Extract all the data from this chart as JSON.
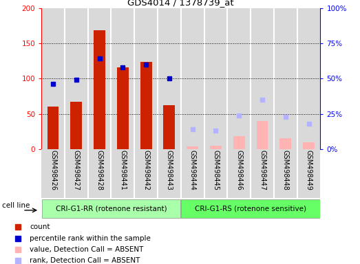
{
  "title": "GDS4014 / 1378739_at",
  "samples": [
    "GSM498426",
    "GSM498427",
    "GSM498428",
    "GSM498441",
    "GSM498442",
    "GSM498443",
    "GSM498444",
    "GSM498445",
    "GSM498446",
    "GSM498447",
    "GSM498448",
    "GSM498449"
  ],
  "count_present": [
    60,
    67,
    168,
    116,
    124,
    62,
    null,
    null,
    null,
    null,
    null,
    null
  ],
  "rank_present": [
    46,
    49,
    64,
    58,
    60,
    50,
    null,
    null,
    null,
    null,
    null,
    null
  ],
  "count_absent": [
    null,
    null,
    null,
    null,
    null,
    null,
    4,
    5,
    18,
    40,
    16,
    10
  ],
  "rank_absent": [
    null,
    null,
    null,
    null,
    null,
    null,
    14,
    13,
    24,
    35,
    23,
    18
  ],
  "left_yticks": [
    0,
    50,
    100,
    150,
    200
  ],
  "right_yticks": [
    0,
    25,
    50,
    75,
    100
  ],
  "right_yticklabels": [
    "0%",
    "25%",
    "50%",
    "75%",
    "100%"
  ],
  "group1_label": "CRI-G1-RR (rotenone resistant)",
  "group2_label": "CRI-G1-RS (rotenone sensitive)",
  "group1_bg": "#aaffaa",
  "group2_bg": "#66ff66",
  "bar_bg": "#d9d9d9",
  "color_count_present": "#cc2200",
  "color_rank_present": "#0000cc",
  "color_count_absent": "#ffb3b3",
  "color_rank_absent": "#b3b3ff",
  "grid_lines": [
    50,
    100,
    150
  ],
  "bar_width": 0.5
}
